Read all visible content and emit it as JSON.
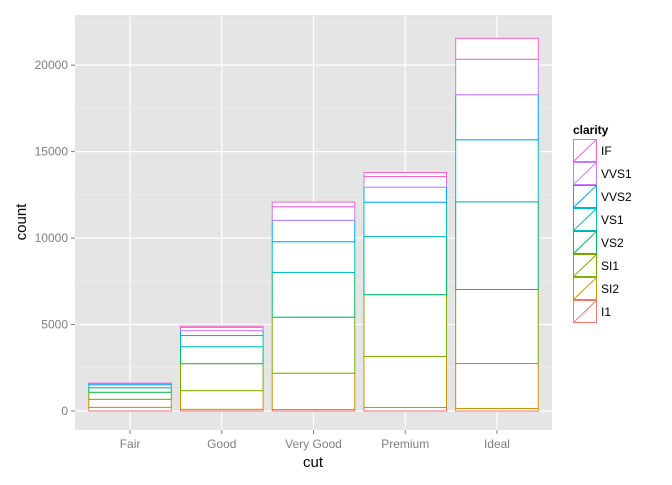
{
  "chart_data": {
    "type": "bar",
    "stacked": true,
    "categories": [
      "Fair",
      "Good",
      "Very Good",
      "Premium",
      "Ideal"
    ],
    "xlabel": "cut",
    "ylabel": "count",
    "ylim": [
      -1100,
      22900
    ],
    "yticks": [
      0,
      5000,
      10000,
      15000,
      20000
    ],
    "grid": true,
    "legend": {
      "title": "clarity",
      "placement": "right"
    },
    "series": [
      {
        "name": "I1",
        "color": "#F8766D",
        "values": [
          210,
          96,
          84,
          205,
          146
        ]
      },
      {
        "name": "SI2",
        "color": "#CD9600",
        "values": [
          466,
          1081,
          2100,
          2949,
          2598
        ]
      },
      {
        "name": "SI1",
        "color": "#7CAE00",
        "values": [
          408,
          1560,
          3240,
          3575,
          4282
        ]
      },
      {
        "name": "VS2",
        "color": "#00BE67",
        "values": [
          261,
          978,
          2591,
          3357,
          5071
        ]
      },
      {
        "name": "VS1",
        "color": "#00BFC4",
        "values": [
          170,
          648,
          1775,
          1989,
          3589
        ]
      },
      {
        "name": "VVS2",
        "color": "#00A9FF",
        "values": [
          69,
          286,
          1235,
          870,
          2606
        ]
      },
      {
        "name": "VVS1",
        "color": "#C77CFF",
        "values": [
          17,
          186,
          789,
          616,
          2047
        ]
      },
      {
        "name": "IF",
        "color": "#FF61CC",
        "values": [
          9,
          71,
          268,
          230,
          1212
        ]
      }
    ]
  }
}
